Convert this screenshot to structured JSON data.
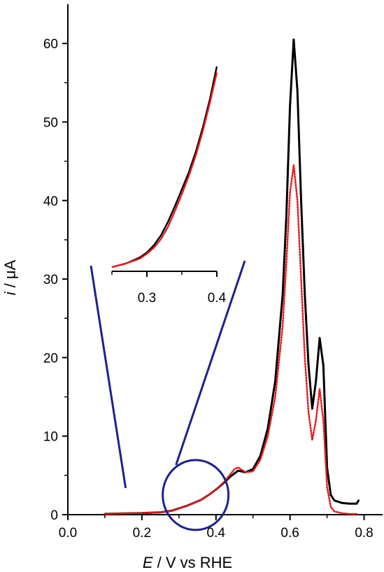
{
  "chart_data": {
    "type": "line",
    "xlabel_var": "E",
    "xlabel_rest": " / V vs  RHE",
    "ylabel_var": "i",
    "ylabel_rest": " / μA",
    "xlim": [
      0.0,
      0.85
    ],
    "ylim": [
      0,
      65
    ],
    "x_ticks": [
      0.0,
      0.2,
      0.4,
      0.6,
      0.8
    ],
    "x_tick_labels": [
      "0.0",
      "0.2",
      "0.4",
      "0.6",
      "0.8"
    ],
    "y_ticks": [
      0,
      10,
      20,
      30,
      40,
      50,
      60
    ],
    "y_tick_labels": [
      "0",
      "10",
      "20",
      "30",
      "40",
      "50",
      "60"
    ],
    "grid": false,
    "legend": "none",
    "series": [
      {
        "color": "#000000",
        "style": "solid",
        "x": [
          0.1,
          0.2,
          0.25,
          0.28,
          0.3,
          0.32,
          0.34,
          0.36,
          0.38,
          0.4,
          0.42,
          0.44,
          0.46,
          0.48,
          0.5,
          0.52,
          0.54,
          0.56,
          0.58,
          0.59,
          0.6,
          0.61,
          0.62,
          0.63,
          0.64,
          0.65,
          0.66,
          0.67,
          0.68,
          0.69,
          0.7,
          0.71,
          0.72,
          0.74,
          0.76,
          0.78,
          0.785
        ],
        "y": [
          0.1,
          0.2,
          0.3,
          0.5,
          0.8,
          1.1,
          1.5,
          1.9,
          2.5,
          3.2,
          4.0,
          4.9,
          5.6,
          5.4,
          5.8,
          7.5,
          11.0,
          17.0,
          28.0,
          38.0,
          52.0,
          60.5,
          54.0,
          40.0,
          28.0,
          19.0,
          13.5,
          17.0,
          22.5,
          19.0,
          6.0,
          2.5,
          1.8,
          1.5,
          1.4,
          1.4,
          1.8
        ]
      },
      {
        "color": "#e8191f",
        "style": "dotted",
        "x": [
          0.1,
          0.2,
          0.25,
          0.28,
          0.3,
          0.32,
          0.34,
          0.36,
          0.38,
          0.4,
          0.42,
          0.44,
          0.45,
          0.46,
          0.48,
          0.5,
          0.52,
          0.54,
          0.56,
          0.58,
          0.59,
          0.6,
          0.61,
          0.62,
          0.63,
          0.64,
          0.65,
          0.66,
          0.67,
          0.68,
          0.69,
          0.7,
          0.71,
          0.72,
          0.74,
          0.76,
          0.78
        ],
        "y": [
          0.1,
          0.2,
          0.3,
          0.5,
          0.8,
          1.1,
          1.5,
          1.9,
          2.5,
          3.2,
          4.1,
          5.2,
          5.8,
          6.0,
          5.4,
          5.5,
          7.0,
          10.0,
          15.0,
          24.0,
          32.0,
          41.0,
          44.5,
          40.0,
          30.0,
          20.0,
          13.0,
          9.5,
          12.0,
          16.0,
          12.0,
          3.5,
          1.0,
          0.4,
          0.2,
          0.1,
          0.1
        ]
      }
    ],
    "inset": {
      "xlim": [
        0.25,
        0.4
      ],
      "x_ticks": [
        0.3,
        0.4
      ],
      "x_tick_labels": [
        "0.3",
        "0.4"
      ],
      "zoom_center": [
        0.345,
        2.5
      ],
      "series": [
        {
          "color": "#000000",
          "x": [
            0.25,
            0.27,
            0.29,
            0.3,
            0.31,
            0.32,
            0.33,
            0.34,
            0.35,
            0.36,
            0.37,
            0.38,
            0.39,
            0.4
          ],
          "y": [
            0.0,
            0.03,
            0.08,
            0.12,
            0.18,
            0.26,
            0.37,
            0.5,
            0.64,
            0.78,
            0.95,
            1.15,
            1.38,
            1.65
          ]
        },
        {
          "color": "#e8191f",
          "x": [
            0.25,
            0.27,
            0.29,
            0.3,
            0.31,
            0.32,
            0.33,
            0.34,
            0.35,
            0.36,
            0.37,
            0.38,
            0.39,
            0.4
          ],
          "y": [
            0.0,
            0.03,
            0.07,
            0.11,
            0.16,
            0.23,
            0.33,
            0.46,
            0.6,
            0.75,
            0.92,
            1.12,
            1.35,
            1.6
          ]
        }
      ]
    }
  }
}
